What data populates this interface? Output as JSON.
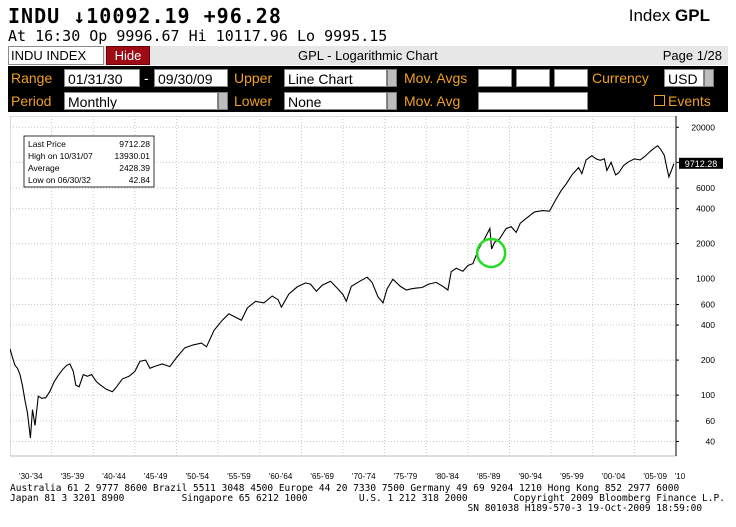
{
  "header": {
    "ticker": "INDU",
    "arrow": "↓",
    "last": "10092.19",
    "change": "+96.28",
    "type_label": "Index",
    "function": "GPL",
    "line2": "At 16:30  Op 9996.67 Hi 10117.96 Lo 9995.15"
  },
  "toolbar": {
    "security": "INDU INDEX",
    "hide_label": "Hide",
    "title": "GPL - Logarithmic Chart",
    "page": "Page 1/28"
  },
  "panel": {
    "range_label": "Range",
    "range_from": "01/31/30",
    "range_sep": "-",
    "range_to": "09/30/09",
    "upper_label": "Upper",
    "upper_value": "Line Chart",
    "mov_avgs_label": "Mov. Avgs",
    "currency_label": "Currency",
    "currency_value": "USD",
    "period_label": "Period",
    "period_value": "Monthly",
    "lower_label": "Lower",
    "lower_value": "None",
    "mov_avg_label": "Mov. Avg",
    "events_label": "Events"
  },
  "stats": {
    "last_price_label": "Last Price",
    "last_price": "9712.28",
    "high_label": "High on 10/31/07",
    "high": "13930.01",
    "average_label": "Average",
    "average": "2428.39",
    "low_label": "Low on 06/30/32",
    "low": "42.84"
  },
  "chart_data": {
    "type": "line",
    "title": "",
    "xlabel": "",
    "ylabel": "",
    "yscale": "log",
    "ylim": [
      30,
      25000
    ],
    "xlim": [
      1930,
      2010
    ],
    "yticks": [
      40,
      60,
      100,
      200,
      400,
      600,
      1000,
      2000,
      4000,
      6000,
      10000,
      20000
    ],
    "ytick_labels": [
      "40",
      "60",
      "100",
      "200",
      "400",
      "600",
      "1000",
      "2000",
      "4000",
      "6000",
      "10000",
      "20000"
    ],
    "xtick_labels": [
      "'30-'34",
      "'35-'39",
      "'40-'44",
      "'45-'49",
      "'50-'54",
      "'55-'59",
      "'60-'64",
      "'65-'69",
      "'70-'74",
      "'75-'79",
      "'80-'84",
      "'85-'89",
      "'90-'94",
      "'95-'99",
      "'00-'04",
      "'05-'09",
      "'10"
    ],
    "last_value_label": "9712.28",
    "grid": true,
    "highlight_circle_year": 1987.8,
    "series": [
      {
        "x": [
          1930.0,
          1930.3,
          1930.6,
          1930.9,
          1931.2,
          1931.5,
          1931.8,
          1932.1,
          1932.45,
          1932.7,
          1933.0,
          1933.4,
          1933.8,
          1934.3,
          1934.8,
          1935.3,
          1935.8,
          1936.3,
          1936.8,
          1937.2,
          1937.6,
          1937.9,
          1938.3,
          1938.8,
          1939.3,
          1939.8,
          1940.4,
          1941.0,
          1941.6,
          1942.3,
          1942.8,
          1943.5,
          1944.3,
          1945.0,
          1945.6,
          1946.3,
          1946.8,
          1947.5,
          1948.3,
          1949.2,
          1950.0,
          1951.0,
          1952.0,
          1953.0,
          1953.6,
          1954.5,
          1955.5,
          1956.3,
          1957.0,
          1957.8,
          1958.5,
          1959.5,
          1960.5,
          1961.5,
          1962.2,
          1962.6,
          1963.5,
          1964.5,
          1965.5,
          1966.1,
          1966.8,
          1967.5,
          1968.5,
          1969.3,
          1970.0,
          1970.4,
          1971.0,
          1972.0,
          1972.9,
          1973.5,
          1974.2,
          1974.8,
          1975.3,
          1976.0,
          1976.9,
          1977.6,
          1978.2,
          1978.8,
          1979.5,
          1980.3,
          1981.2,
          1982.0,
          1982.6,
          1983.0,
          1983.6,
          1984.4,
          1985.0,
          1985.6,
          1986.3,
          1987.0,
          1987.65,
          1987.85,
          1988.2,
          1988.8,
          1989.6,
          1990.2,
          1990.8,
          1991.3,
          1992.0,
          1993.0,
          1994.0,
          1994.8,
          1995.5,
          1996.2,
          1996.8,
          1997.5,
          1998.3,
          1998.7,
          1999.2,
          1999.9,
          2000.4,
          2000.9,
          2001.4,
          2001.7,
          2002.2,
          2002.75,
          2003.1,
          2003.7,
          2004.3,
          2005.0,
          2005.7,
          2006.3,
          2006.9,
          2007.4,
          2007.8,
          2008.2,
          2008.6,
          2008.9,
          2009.15,
          2009.45,
          2009.75
        ],
        "y": [
          250,
          210,
          180,
          170,
          150,
          120,
          90,
          70,
          42.84,
          75,
          55,
          98,
          94,
          95,
          108,
          130,
          148,
          165,
          180,
          185,
          160,
          122,
          118,
          150,
          145,
          150,
          130,
          120,
          112,
          107,
          118,
          138,
          145,
          160,
          195,
          200,
          170,
          178,
          185,
          176,
          210,
          255,
          270,
          280,
          260,
          360,
          440,
          500,
          470,
          440,
          560,
          640,
          620,
          710,
          660,
          570,
          740,
          850,
          920,
          900,
          780,
          880,
          950,
          830,
          730,
          640,
          860,
          950,
          1030,
          930,
          700,
          620,
          820,
          990,
          860,
          800,
          820,
          830,
          840,
          900,
          930,
          860,
          800,
          1150,
          1230,
          1160,
          1300,
          1350,
          1800,
          2200,
          2700,
          1800,
          2050,
          2200,
          2700,
          2800,
          2500,
          3000,
          3300,
          3750,
          3850,
          3800,
          4700,
          5700,
          6500,
          7800,
          9000,
          8000,
          10500,
          11400,
          10700,
          10400,
          10700,
          8500,
          10000,
          7800,
          8100,
          9400,
          10100,
          10700,
          10500,
          11300,
          12400,
          13300,
          13900,
          12800,
          11500,
          9000,
          7500,
          8500,
          9712.28
        ]
      }
    ]
  },
  "footer": {
    "line1": "Australia 61 2 9777 8600 Brazil 5511 3048 4500 Europe 44 20 7330 7500 Germany 49 69 9204 1210 Hong Kong 852 2977 6000",
    "line2": "Japan 81 3 3201 8900          Singapore 65 6212 1000         U.S. 1 212 318 2000        Copyright 2009 Bloomberg Finance L.P.",
    "line3": "                                                                                SN 801038 H189-570-3 19-Oct-2009 18:59:00"
  }
}
